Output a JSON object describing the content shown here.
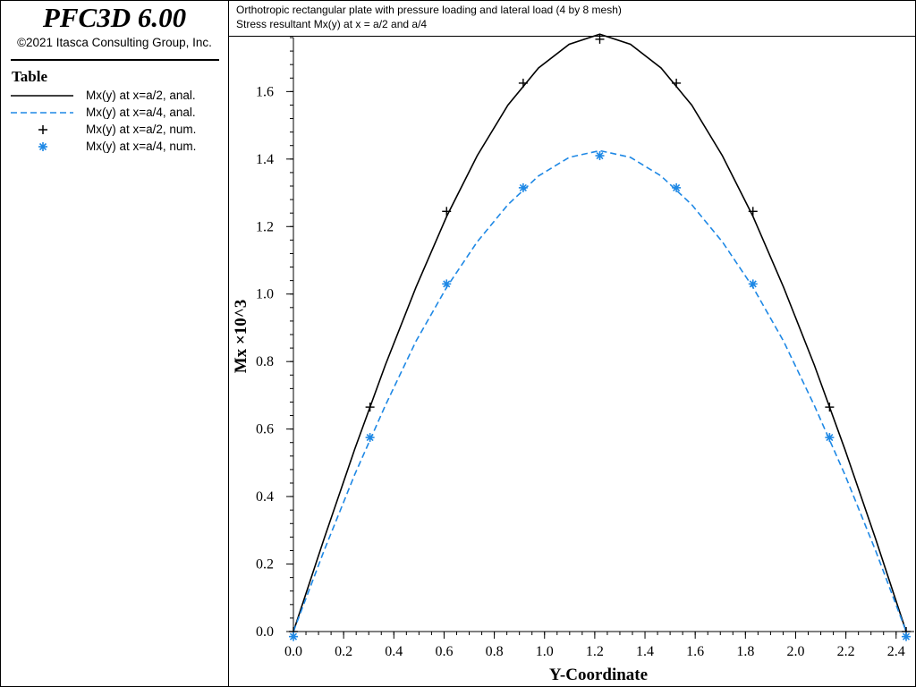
{
  "app": {
    "title": "PFC3D 6.00",
    "copyright": "©2021 Itasca Consulting Group, Inc."
  },
  "legend": {
    "title": "Table",
    "items": [
      {
        "label": "Mx(y) at x=a/2, anal.",
        "style": "solid-line",
        "color": "#000000"
      },
      {
        "label": "Mx(y) at x=a/4, anal.",
        "style": "dashed-line",
        "color": "#1e88e5"
      },
      {
        "label": "Mx(y) at x=a/2, num.",
        "style": "plus-marker",
        "color": "#000000"
      },
      {
        "label": "Mx(y) at x=a/4, num.",
        "style": "star-marker",
        "color": "#1e88e5"
      }
    ]
  },
  "header": {
    "line1": "Orthotropic rectangular plate with pressure loading and lateral load (4 by 8 mesh)",
    "line2": "Stress resultant Mx(y) at x = a/2 and a/4"
  },
  "chart_data": {
    "type": "line",
    "xlabel": "Y-Coordinate",
    "ylabel": "Mx ×10^3",
    "xlim": [
      0.0,
      2.44
    ],
    "ylim": [
      0.0,
      1.76
    ],
    "x_ticks": [
      0.0,
      0.2,
      0.4,
      0.6,
      0.8,
      1.0,
      1.2,
      1.4,
      1.6,
      1.8,
      2.0,
      2.2,
      2.4
    ],
    "x_tick_labels": [
      "0.0",
      "0.2",
      "0.4",
      "0.6",
      "0.8",
      "1.0",
      "1.2",
      "1.4",
      "1.6",
      "1.8",
      "2.0",
      "2.2",
      "2.4"
    ],
    "y_ticks": [
      0.0,
      0.2,
      0.4,
      0.6,
      0.8,
      1.0,
      1.2,
      1.4,
      1.6
    ],
    "y_tick_labels": [
      "0.0",
      "0.2",
      "0.4",
      "0.6",
      "0.8",
      "1.0",
      "1.2",
      "1.4",
      "1.6"
    ],
    "grid": false,
    "series": [
      {
        "name": "Mx(y) at x=a/2, anal.",
        "kind": "line",
        "style": "solid",
        "color": "#000000",
        "x": [
          0.0,
          0.122,
          0.244,
          0.366,
          0.488,
          0.61,
          0.732,
          0.854,
          0.976,
          1.098,
          1.22,
          1.342,
          1.464,
          1.586,
          1.708,
          1.83,
          1.952,
          2.074,
          2.196,
          2.318,
          2.44
        ],
        "y": [
          0.0,
          0.275,
          0.54,
          0.79,
          1.02,
          1.23,
          1.41,
          1.56,
          1.67,
          1.74,
          1.77,
          1.74,
          1.67,
          1.56,
          1.41,
          1.23,
          1.02,
          0.79,
          0.54,
          0.275,
          0.0
        ]
      },
      {
        "name": "Mx(y) at x=a/4, anal.",
        "kind": "line",
        "style": "dashed",
        "color": "#1e88e5",
        "x": [
          0.0,
          0.122,
          0.244,
          0.366,
          0.488,
          0.61,
          0.732,
          0.854,
          0.976,
          1.098,
          1.22,
          1.342,
          1.464,
          1.586,
          1.708,
          1.83,
          1.952,
          2.074,
          2.196,
          2.318,
          2.44
        ],
        "y": [
          0.0,
          0.24,
          0.465,
          0.67,
          0.86,
          1.02,
          1.155,
          1.265,
          1.35,
          1.405,
          1.425,
          1.405,
          1.35,
          1.265,
          1.155,
          1.02,
          0.86,
          0.67,
          0.465,
          0.24,
          0.0
        ]
      },
      {
        "name": "Mx(y) at x=a/2, num.",
        "kind": "marker",
        "marker": "plus",
        "color": "#000000",
        "x": [
          0.0,
          0.305,
          0.61,
          0.915,
          1.22,
          1.525,
          1.83,
          2.135,
          2.44
        ],
        "y": [
          0.0,
          0.665,
          1.245,
          1.625,
          1.755,
          1.625,
          1.245,
          0.665,
          0.0
        ]
      },
      {
        "name": "Mx(y) at x=a/4, num.",
        "kind": "marker",
        "marker": "star",
        "color": "#1e88e5",
        "x": [
          0.0,
          0.305,
          0.61,
          0.915,
          1.22,
          1.525,
          1.83,
          2.135,
          2.44
        ],
        "y": [
          -0.015,
          0.575,
          1.03,
          1.315,
          1.41,
          1.315,
          1.03,
          0.575,
          -0.015
        ]
      }
    ]
  }
}
